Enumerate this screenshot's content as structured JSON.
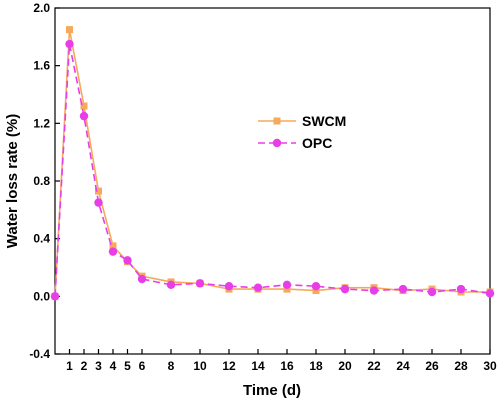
{
  "chart_data": {
    "type": "line",
    "title": "",
    "xlabel": "Time (d)",
    "ylabel": "Water loss rate (%)",
    "xlim": [
      0,
      30
    ],
    "ylim": [
      -0.4,
      2.0
    ],
    "xticks": [
      1,
      2,
      3,
      4,
      5,
      6,
      8,
      10,
      12,
      14,
      16,
      18,
      20,
      22,
      24,
      26,
      28,
      30
    ],
    "yticks": [
      -0.4,
      0.0,
      0.4,
      0.8,
      1.2,
      1.6,
      2.0
    ],
    "ytick_labels": [
      "-0.4",
      "0.0",
      "0.4",
      "0.8",
      "1.2",
      "1.6",
      "2.0"
    ],
    "legend_position": "center-right",
    "grid": false,
    "x": [
      0,
      1,
      2,
      3,
      4,
      5,
      6,
      8,
      10,
      12,
      14,
      16,
      18,
      20,
      22,
      24,
      26,
      28,
      30
    ],
    "series": [
      {
        "name": "SWCM",
        "color": "#f5a95d",
        "marker": "square",
        "line_style": "solid",
        "values": [
          0.0,
          1.85,
          1.32,
          0.73,
          0.35,
          0.24,
          0.14,
          0.1,
          0.09,
          0.05,
          0.05,
          0.05,
          0.04,
          0.06,
          0.06,
          0.04,
          0.05,
          0.03,
          0.03
        ]
      },
      {
        "name": "OPC",
        "color": "#e83ee8",
        "marker": "circle",
        "line_style": "dashed",
        "values": [
          0.0,
          1.75,
          1.25,
          0.65,
          0.31,
          0.25,
          0.12,
          0.08,
          0.09,
          0.07,
          0.06,
          0.08,
          0.07,
          0.05,
          0.04,
          0.05,
          0.03,
          0.05,
          0.02
        ]
      }
    ]
  }
}
